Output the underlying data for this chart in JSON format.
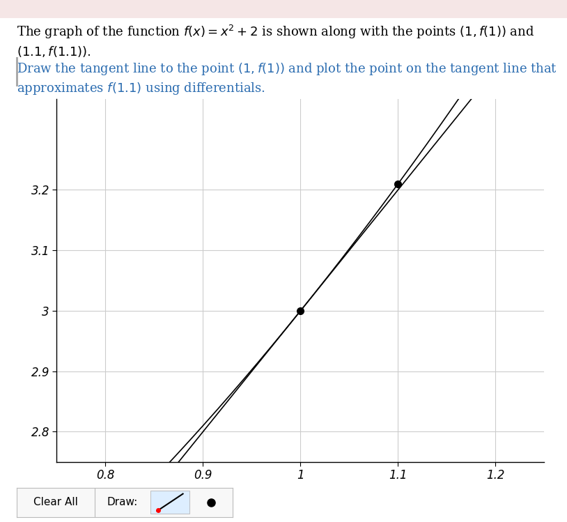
{
  "xlim": [
    0.75,
    1.25
  ],
  "ylim": [
    2.75,
    3.35
  ],
  "xticks": [
    0.8,
    0.9,
    1.0,
    1.1,
    1.2
  ],
  "yticks": [
    2.8,
    2.9,
    3.0,
    3.1,
    3.2
  ],
  "xtick_labels": [
    "0.8",
    "0.9",
    "1",
    "1.1",
    "1.2"
  ],
  "ytick_labels": [
    "2.8",
    "2.9",
    "3",
    "3.1",
    "3.2"
  ],
  "point1": [
    1.0,
    3.0
  ],
  "point2": [
    1.1,
    3.21
  ],
  "curve_color": "#000000",
  "tangent_color": "#000000",
  "dot_color": "#000000",
  "background_color": "#ffffff",
  "grid_color": "#cccccc",
  "text_color": "#000000",
  "instruction_color": "#2b6cb0",
  "bar_color": "#aaaaaa",
  "font_size": 13,
  "tick_fontsize": 12,
  "figure_width": 8.14,
  "figure_height": 7.49,
  "top_bg": "#f5e6e6"
}
